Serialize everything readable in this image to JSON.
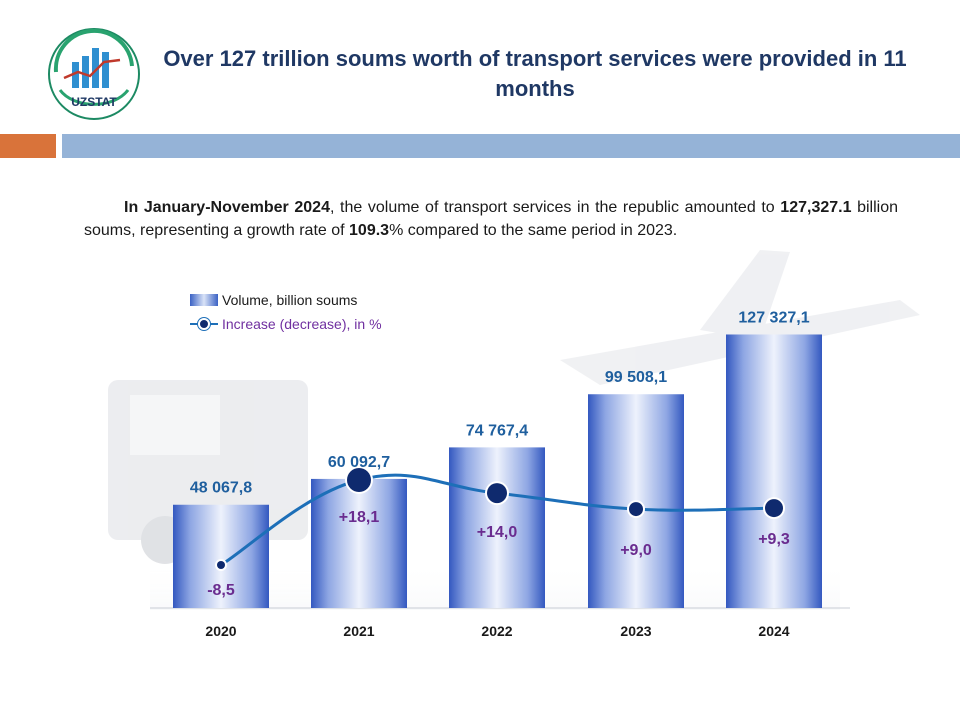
{
  "header": {
    "title": "Over 127 trillion soums worth of transport services were provided in 11 months",
    "logo_text": "UZSTAT"
  },
  "intro": {
    "part1": "In January-November 2024",
    "part2": ", the volume of transport services in the republic amounted to ",
    "part3": "127,327.1",
    "part4": " billion soums, representing a growth rate of ",
    "part5": "109.3",
    "part6": "% compared to the same period in 2023."
  },
  "legend": {
    "volume": "Volume, billion soums",
    "increase": "Increase (decrease), in %"
  },
  "colors": {
    "title": "#1f3864",
    "bar_edge": "#3b62c4",
    "line": "#1d6fb8",
    "marker": "#0f2a6e",
    "value_label": "#1f5f9e",
    "pct_label": "#6a2c8f",
    "orange": "#d9733a",
    "band": "#95b3d7"
  },
  "chart_data": {
    "type": "bar",
    "categories": [
      "2020",
      "2021",
      "2022",
      "2023",
      "2024"
    ],
    "series": [
      {
        "name": "Volume, billion soums",
        "values": [
          48067.8,
          60092.7,
          74767.4,
          99508.1,
          127327.1
        ],
        "labels": [
          "48 067,8",
          "60 092,7",
          "74 767,4",
          "99 508,1",
          "127 327,1"
        ]
      },
      {
        "name": "Increase (decrease), in %",
        "type": "line",
        "values": [
          -8.5,
          18.1,
          14.0,
          9.0,
          9.3
        ],
        "labels": [
          "-8,5",
          "+18,1",
          "+14,0",
          "+9,0",
          "+9,3"
        ]
      }
    ],
    "title": "",
    "xlabel": "",
    "ylabel": "",
    "ylim": [
      0,
      135000
    ],
    "grid": false,
    "legend": "top-left"
  }
}
